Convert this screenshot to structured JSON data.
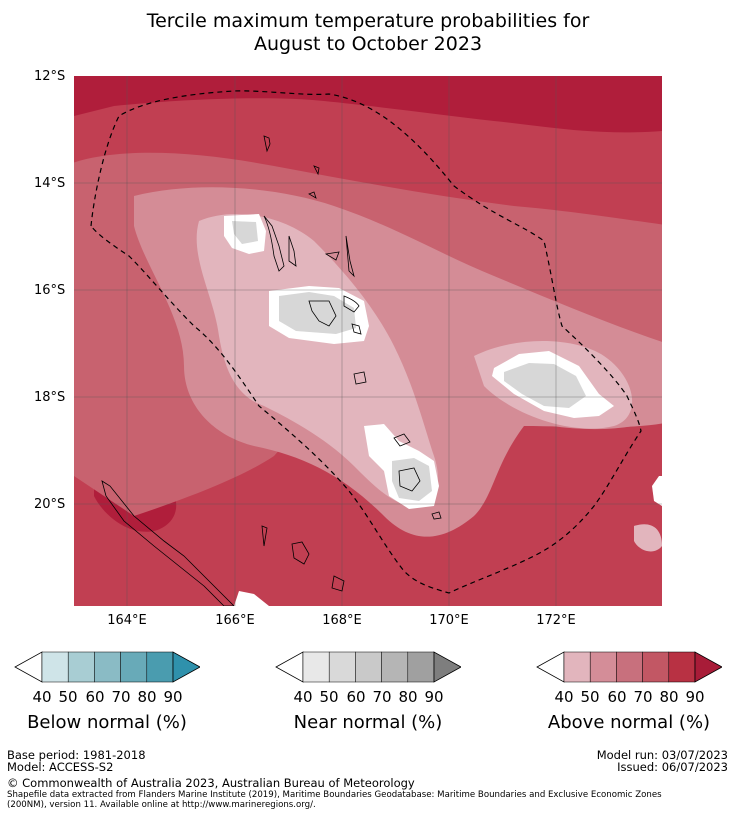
{
  "title_line1": "Tercile maximum temperature probabilities for",
  "title_line2": "August to October 2023",
  "lat_labels": [
    "12°S",
    "14°S",
    "16°S",
    "18°S",
    "20°S"
  ],
  "lon_labels": [
    "164°E",
    "166°E",
    "168°E",
    "170°E",
    "172°E"
  ],
  "colorbars": [
    {
      "title": "Below normal (%)",
      "ticks": [
        "40",
        "50",
        "60",
        "70",
        "80",
        "90"
      ],
      "colors": [
        "#ffffff",
        "#cfe4e8",
        "#a8cdd3",
        "#8abbc5",
        "#68aab8",
        "#4a9caf",
        "#2f91ac"
      ]
    },
    {
      "title": "Near normal (%)",
      "ticks": [
        "40",
        "50",
        "60",
        "70",
        "80",
        "90"
      ],
      "colors": [
        "#ffffff",
        "#e8e8e8",
        "#d9d9d9",
        "#c9c9c9",
        "#b5b5b5",
        "#a0a0a0",
        "#7e7e7e"
      ]
    },
    {
      "title": "Above normal (%)",
      "ticks": [
        "40",
        "50",
        "60",
        "70",
        "80",
        "90"
      ],
      "colors": [
        "#ffffff",
        "#e2b5bd",
        "#d48d98",
        "#c8707d",
        "#c25764",
        "#b83143",
        "#a81c38"
      ]
    }
  ],
  "footer": {
    "base_period": "Base period: 1981-2018",
    "model": "Model: ACCESS-S2",
    "model_run": "Model run: 03/07/2023",
    "issued": "Issued: 06/07/2023",
    "copyright": "© Commonwealth of Australia 2023, Australian Bureau of Meteorology",
    "shapefile_line1": "Shapefile data extracted from Flanders Marine Institute (2019), Maritime Boundaries Geodatabase: Maritime Boundaries and Exclusive Economic Zones",
    "shapefile_line2": "(200NM), version 11. Available online at http://www.marineregions.org/."
  },
  "map_colors": {
    "above_90": "#b01e3b",
    "above_80": "#bf3c4e",
    "above_70": "#c8626f",
    "above_60": "#d48c96",
    "above_50": "#e2b5bd",
    "white_40": "#ffffff",
    "near_40": "#d7d7d7"
  }
}
